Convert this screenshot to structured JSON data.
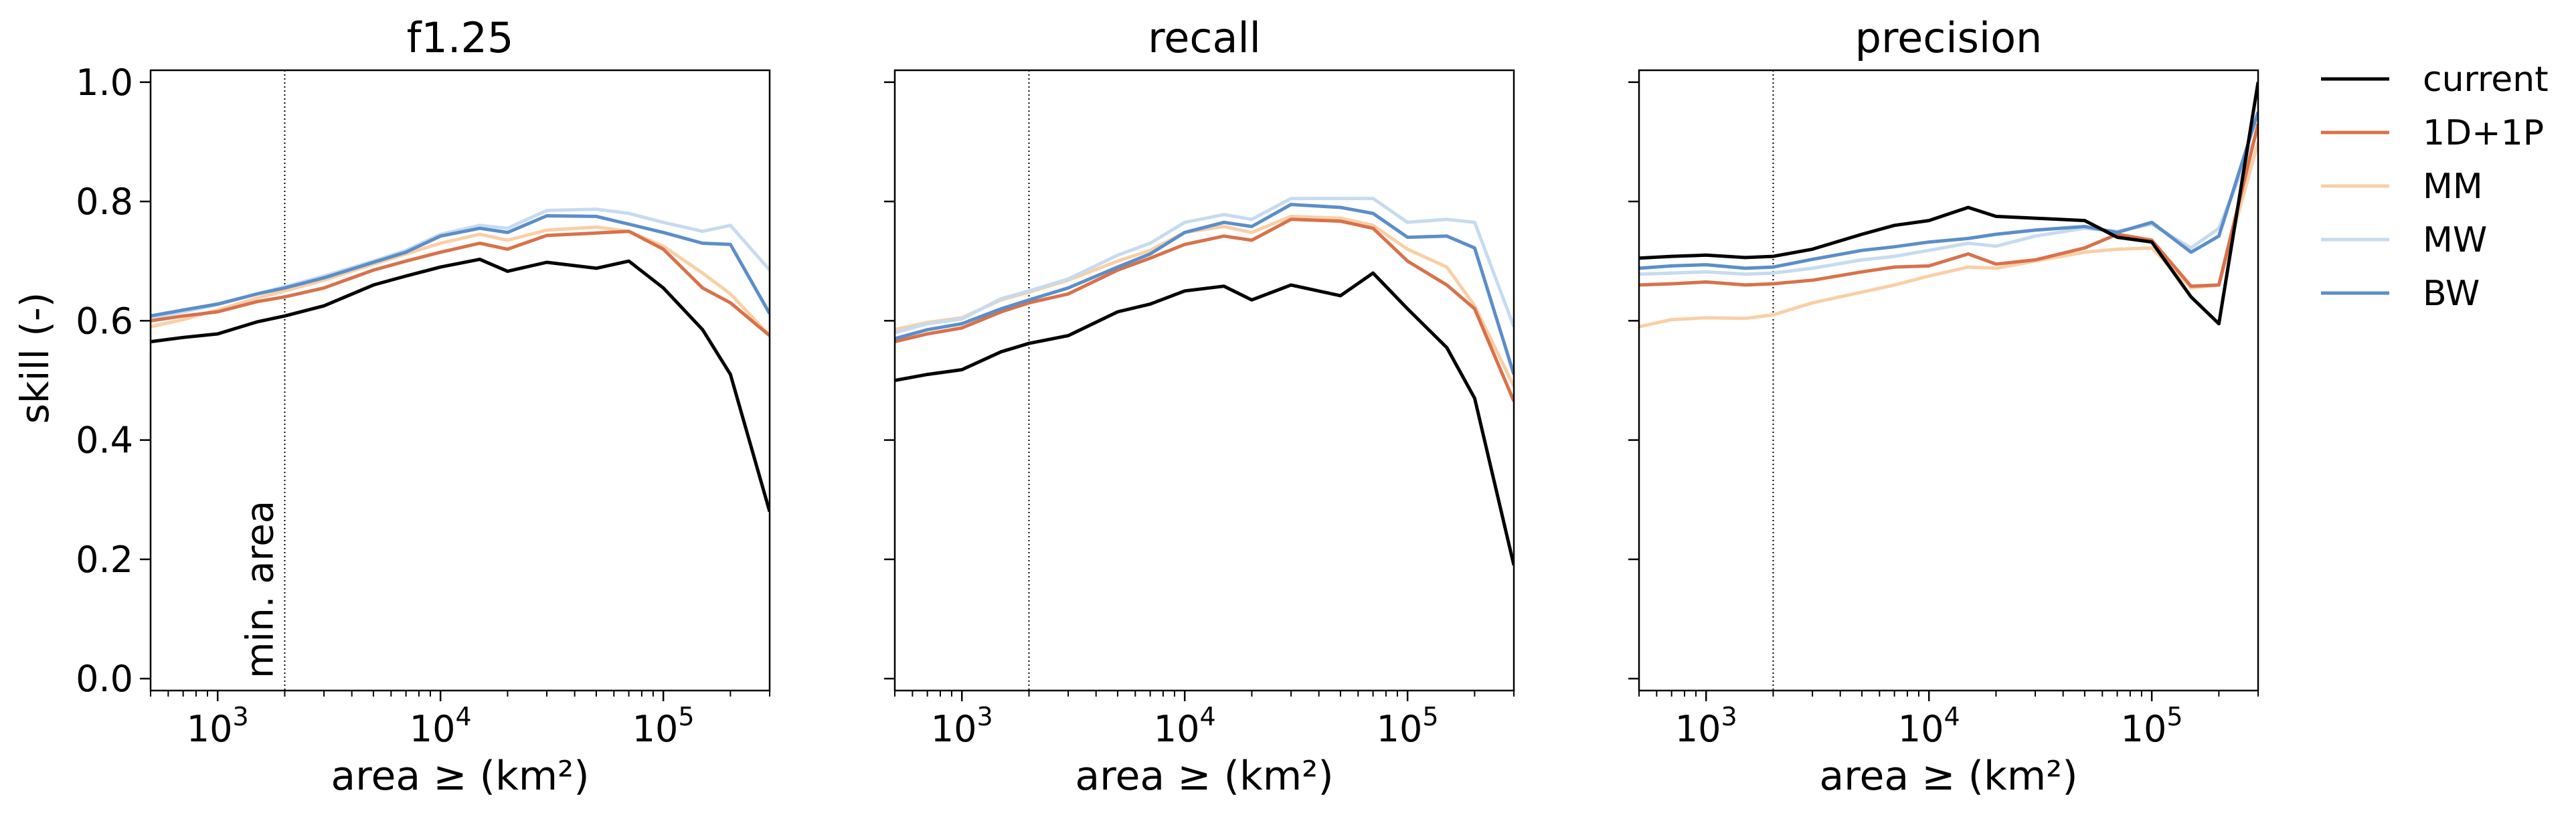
{
  "figure": {
    "ylabel": "skill (-)",
    "annotation": "min. area"
  },
  "chart_data": [
    {
      "type": "line",
      "title": "f1.25",
      "xlabel": "area ≥ (km²)",
      "ylabel": "skill (-)",
      "xscale": "log",
      "xlim": [
        500,
        300000
      ],
      "ylim": [
        -0.02,
        1.02
      ],
      "yticks": [
        "0.0",
        "0.2",
        "0.4",
        "0.6",
        "0.8",
        "1.0"
      ],
      "xticks": [
        {
          "base": "10",
          "exp": "3"
        },
        {
          "base": "10",
          "exp": "4"
        },
        {
          "base": "10",
          "exp": "5"
        }
      ],
      "vline": 2000,
      "x": [
        500,
        700,
        1000,
        1500,
        2000,
        3000,
        5000,
        7000,
        10000,
        15000,
        20000,
        30000,
        50000,
        70000,
        100000,
        150000,
        200000,
        300000
      ],
      "series": [
        {
          "name": "current",
          "color": "#000000",
          "values": [
            0.565,
            0.572,
            0.578,
            0.598,
            0.608,
            0.625,
            0.66,
            0.675,
            0.69,
            0.703,
            0.683,
            0.698,
            0.688,
            0.7,
            0.655,
            0.585,
            0.51,
            0.28
          ]
        },
        {
          "name": "1D+1P",
          "color": "#d8714a",
          "values": [
            0.6,
            0.608,
            0.615,
            0.632,
            0.64,
            0.655,
            0.685,
            0.7,
            0.715,
            0.73,
            0.72,
            0.743,
            0.747,
            0.75,
            0.72,
            0.655,
            0.63,
            0.575
          ]
        },
        {
          "name": "MM",
          "color": "#f9cfa6",
          "values": [
            0.59,
            0.602,
            0.618,
            0.638,
            0.65,
            0.668,
            0.695,
            0.712,
            0.73,
            0.745,
            0.735,
            0.752,
            0.757,
            0.75,
            0.725,
            0.68,
            0.645,
            0.575
          ]
        },
        {
          "name": "MW",
          "color": "#c6dbef",
          "values": [
            0.605,
            0.615,
            0.627,
            0.645,
            0.657,
            0.675,
            0.7,
            0.718,
            0.745,
            0.76,
            0.755,
            0.785,
            0.787,
            0.78,
            0.765,
            0.75,
            0.76,
            0.685
          ]
        },
        {
          "name": "BW",
          "color": "#5b8ec9",
          "values": [
            0.608,
            0.618,
            0.628,
            0.645,
            0.655,
            0.672,
            0.698,
            0.715,
            0.742,
            0.755,
            0.748,
            0.776,
            0.775,
            0.762,
            0.748,
            0.73,
            0.728,
            0.612
          ]
        }
      ]
    },
    {
      "type": "line",
      "title": "recall",
      "xlabel": "area ≥ (km²)",
      "xscale": "log",
      "xlim": [
        500,
        300000
      ],
      "ylim": [
        -0.02,
        1.02
      ],
      "xticks": [
        {
          "base": "10",
          "exp": "3"
        },
        {
          "base": "10",
          "exp": "4"
        },
        {
          "base": "10",
          "exp": "5"
        }
      ],
      "vline": 2000,
      "x": [
        500,
        700,
        1000,
        1500,
        2000,
        3000,
        5000,
        7000,
        10000,
        15000,
        20000,
        30000,
        50000,
        70000,
        100000,
        150000,
        200000,
        300000
      ],
      "series": [
        {
          "name": "current",
          "color": "#000000",
          "values": [
            0.5,
            0.51,
            0.518,
            0.548,
            0.562,
            0.575,
            0.615,
            0.628,
            0.65,
            0.658,
            0.635,
            0.66,
            0.642,
            0.68,
            0.62,
            0.555,
            0.47,
            0.19
          ]
        },
        {
          "name": "1D+1P",
          "color": "#d8714a",
          "values": [
            0.565,
            0.578,
            0.588,
            0.615,
            0.63,
            0.645,
            0.685,
            0.705,
            0.728,
            0.742,
            0.735,
            0.77,
            0.767,
            0.755,
            0.7,
            0.66,
            0.62,
            0.465
          ]
        },
        {
          "name": "MM",
          "color": "#f9cfa6",
          "values": [
            0.585,
            0.597,
            0.605,
            0.635,
            0.648,
            0.668,
            0.7,
            0.718,
            0.748,
            0.758,
            0.748,
            0.775,
            0.772,
            0.76,
            0.72,
            0.69,
            0.625,
            0.49
          ]
        },
        {
          "name": "MW",
          "color": "#c6dbef",
          "values": [
            0.58,
            0.595,
            0.603,
            0.637,
            0.65,
            0.67,
            0.71,
            0.73,
            0.765,
            0.778,
            0.77,
            0.805,
            0.805,
            0.805,
            0.765,
            0.77,
            0.765,
            0.59
          ]
        },
        {
          "name": "BW",
          "color": "#5b8ec9",
          "values": [
            0.57,
            0.585,
            0.595,
            0.62,
            0.635,
            0.655,
            0.69,
            0.712,
            0.748,
            0.765,
            0.758,
            0.795,
            0.79,
            0.78,
            0.74,
            0.742,
            0.722,
            0.51
          ]
        }
      ]
    },
    {
      "type": "line",
      "title": "precision",
      "xlabel": "area ≥ (km²)",
      "xscale": "log",
      "xlim": [
        500,
        300000
      ],
      "ylim": [
        -0.02,
        1.02
      ],
      "xticks": [
        {
          "base": "10",
          "exp": "3"
        },
        {
          "base": "10",
          "exp": "4"
        },
        {
          "base": "10",
          "exp": "5"
        }
      ],
      "vline": 2000,
      "x": [
        500,
        700,
        1000,
        1500,
        2000,
        3000,
        5000,
        7000,
        10000,
        15000,
        20000,
        30000,
        50000,
        70000,
        100000,
        150000,
        200000,
        300000
      ],
      "series": [
        {
          "name": "current",
          "color": "#000000",
          "values": [
            0.705,
            0.708,
            0.71,
            0.706,
            0.708,
            0.72,
            0.745,
            0.76,
            0.768,
            0.79,
            0.775,
            0.772,
            0.768,
            0.74,
            0.732,
            0.64,
            0.595,
            1.0
          ]
        },
        {
          "name": "1D+1P",
          "color": "#d8714a",
          "values": [
            0.66,
            0.662,
            0.665,
            0.66,
            0.662,
            0.668,
            0.682,
            0.69,
            0.692,
            0.712,
            0.695,
            0.702,
            0.722,
            0.745,
            0.735,
            0.658,
            0.66,
            0.93
          ]
        },
        {
          "name": "MM",
          "color": "#f9cfa6",
          "values": [
            0.59,
            0.602,
            0.605,
            0.604,
            0.61,
            0.63,
            0.648,
            0.66,
            0.675,
            0.69,
            0.688,
            0.7,
            0.715,
            0.72,
            0.722,
            0.655,
            0.66,
            0.9
          ]
        },
        {
          "name": "MW",
          "color": "#c6dbef",
          "values": [
            0.678,
            0.68,
            0.682,
            0.678,
            0.68,
            0.688,
            0.702,
            0.708,
            0.718,
            0.73,
            0.725,
            0.742,
            0.755,
            0.75,
            0.762,
            0.722,
            0.755,
            0.92
          ]
        },
        {
          "name": "BW",
          "color": "#5b8ec9",
          "values": [
            0.688,
            0.692,
            0.694,
            0.688,
            0.69,
            0.703,
            0.718,
            0.724,
            0.732,
            0.738,
            0.745,
            0.752,
            0.758,
            0.748,
            0.765,
            0.715,
            0.742,
            0.95
          ]
        }
      ]
    }
  ],
  "legend": {
    "placement": "right",
    "entries": [
      {
        "label": "current",
        "color": "#000000"
      },
      {
        "label": "1D+1P",
        "color": "#d8714a"
      },
      {
        "label": "MM",
        "color": "#f9cfa6"
      },
      {
        "label": "MW",
        "color": "#c6dbef"
      },
      {
        "label": "BW",
        "color": "#5b8ec9"
      }
    ]
  }
}
